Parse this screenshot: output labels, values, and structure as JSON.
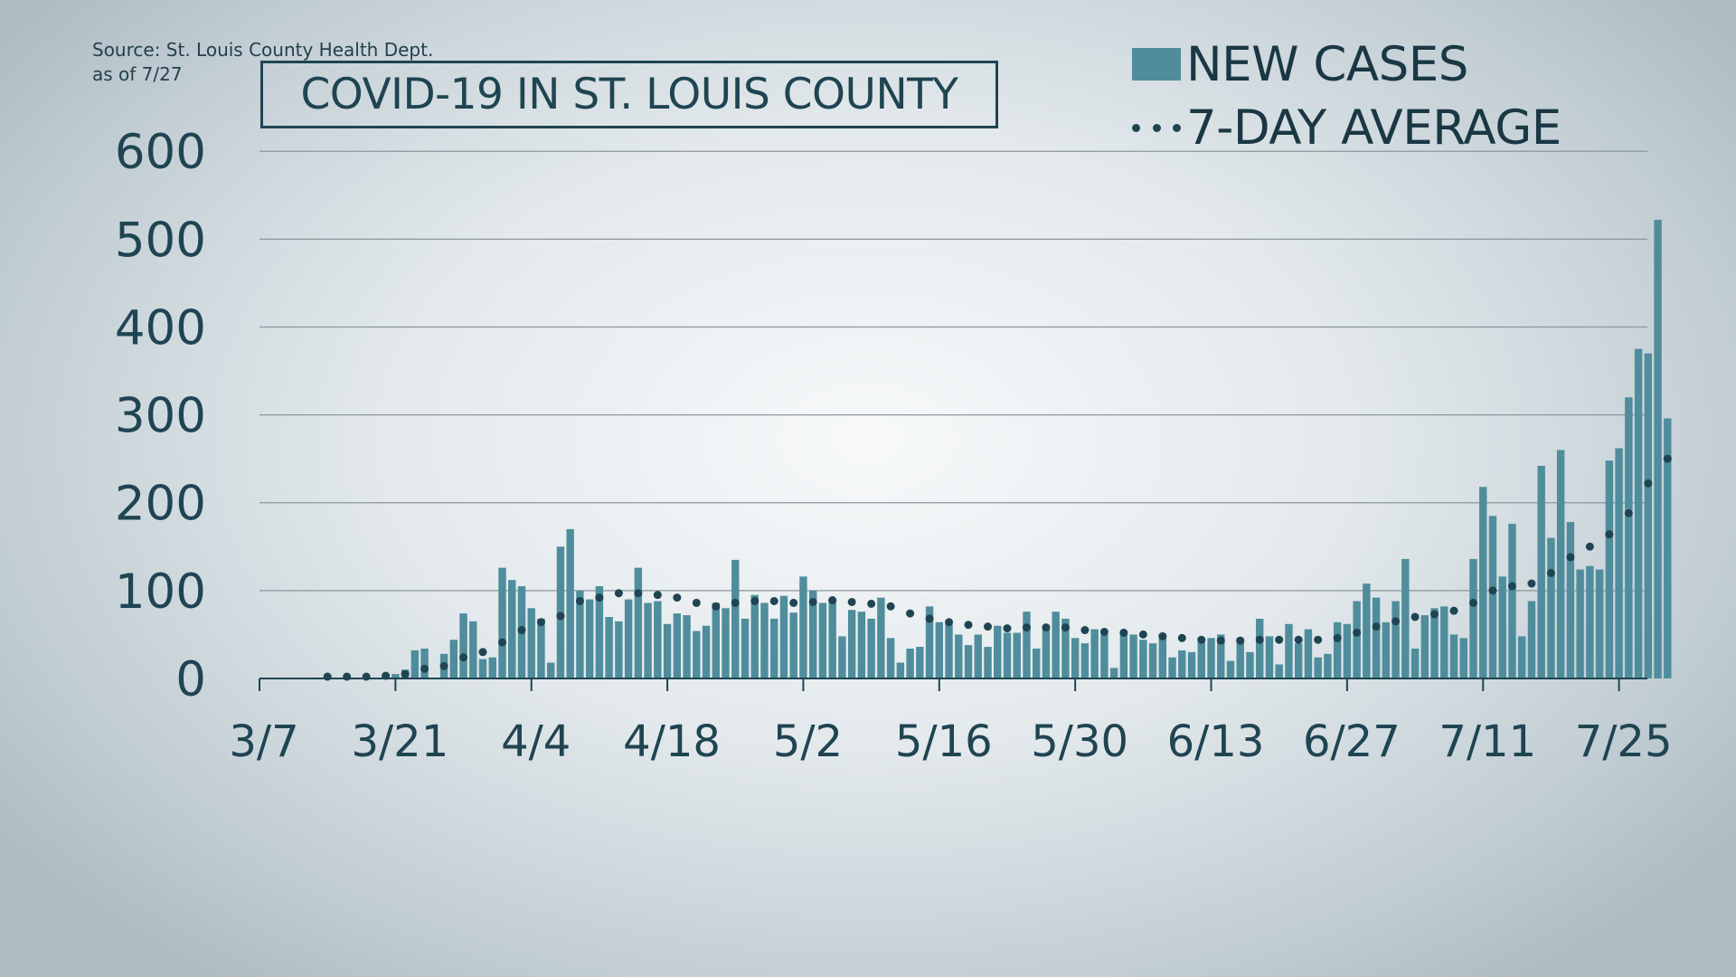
{
  "header": {
    "source_line": "Source: St. Louis County Health Dept.",
    "date_line": "as of 7/27",
    "title": "COVID-19 IN ST. LOUIS COUNTY"
  },
  "legend": {
    "bars_label": "NEW CASES",
    "dots_label": "7-DAY AVERAGE"
  },
  "colors": {
    "bar": "#4f8d9c",
    "dots": "#1f4452",
    "grid": "#8a979d",
    "axis": "#1f4452"
  },
  "chart_data": {
    "type": "bar",
    "title": "COVID-19 IN ST. LOUIS COUNTY",
    "xlabel": "",
    "ylabel": "",
    "ylim": [
      0,
      600
    ],
    "yticks": [
      "0",
      "100",
      "200",
      "300",
      "400",
      "500",
      "600"
    ],
    "xticks": [
      "3/7",
      "3/21",
      "4/4",
      "4/18",
      "5/2",
      "5/16",
      "5/30",
      "6/13",
      "6/27",
      "7/11",
      "7/25"
    ],
    "grid": true,
    "legend_position": "top-right",
    "x_start": "3/7",
    "x_end": "7/27",
    "series": [
      {
        "name": "NEW CASES",
        "kind": "bar",
        "values": [
          0,
          0,
          0,
          0,
          0,
          0,
          0,
          0,
          0,
          0,
          0,
          0,
          0,
          5,
          5,
          10,
          32,
          34,
          0,
          28,
          44,
          74,
          65,
          22,
          24,
          126,
          112,
          105,
          80,
          68,
          18,
          150,
          170,
          100,
          90,
          105,
          70,
          65,
          90,
          126,
          86,
          88,
          62,
          74,
          72,
          54,
          60,
          86,
          80,
          135,
          68,
          95,
          86,
          68,
          94,
          75,
          116,
          100,
          86,
          88,
          48,
          78,
          76,
          68,
          92,
          46,
          18,
          34,
          36,
          82,
          64,
          62,
          50,
          38,
          50,
          36,
          60,
          52,
          52,
          76,
          34,
          56,
          76,
          68,
          46,
          40,
          56,
          50,
          12,
          54,
          50,
          44,
          40,
          50,
          24,
          32,
          30,
          46,
          46,
          50,
          20,
          46,
          30,
          68,
          48,
          16,
          62,
          40,
          56,
          24,
          28,
          64,
          62,
          88,
          108,
          92,
          64,
          88,
          136,
          34,
          72,
          80,
          82,
          50,
          46,
          136,
          218,
          185,
          116,
          176,
          48,
          88,
          242,
          160,
          260,
          178,
          124,
          128,
          124,
          248,
          262,
          320,
          375,
          370,
          522,
          296
        ]
      },
      {
        "name": "7-DAY AVERAGE",
        "kind": "dots",
        "values": [
          null,
          null,
          null,
          null,
          null,
          null,
          0,
          0,
          0,
          0,
          0,
          0,
          0,
          1,
          2,
          3,
          6,
          9,
          10,
          12,
          18,
          22,
          25,
          28,
          31,
          39,
          46,
          53,
          60,
          62,
          65,
          69,
          80,
          86,
          90,
          90,
          92,
          95,
          96,
          95,
          94,
          93,
          92,
          90,
          88,
          84,
          82,
          80,
          82,
          84,
          85,
          86,
          86,
          86,
          85,
          84,
          84,
          85,
          86,
          87,
          86,
          85,
          84,
          83,
          82,
          80,
          76,
          72,
          68,
          66,
          64,
          62,
          60,
          59,
          58,
          57,
          56,
          55,
          55,
          56,
          56,
          56,
          57,
          56,
          54,
          53,
          52,
          51,
          50,
          50,
          49,
          48,
          47,
          46,
          45,
          44,
          43,
          42,
          42,
          41,
          41,
          41,
          41,
          42,
          42,
          42,
          42,
          42,
          42,
          42,
          43,
          44,
          46,
          50,
          54,
          57,
          60,
          63,
          67,
          68,
          70,
          71,
          73,
          75,
          78,
          84,
          92,
          98,
          100,
          103,
          104,
          106,
          110,
          118,
          128,
          136,
          143,
          148,
          152,
          162,
          170,
          186,
          203,
          220,
          240,
          248
        ]
      }
    ]
  }
}
